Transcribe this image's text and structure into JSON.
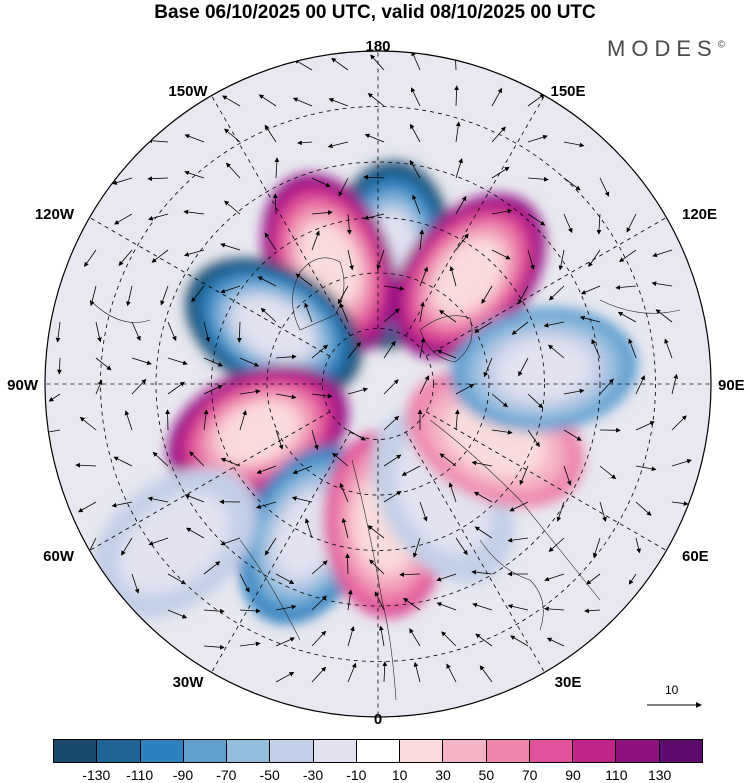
{
  "title": "Base 06/10/2025 00 UTC, valid 08/10/2025 00 UTC",
  "brand": {
    "name": "MODES",
    "mark": "©"
  },
  "longitude_labels": [
    "180",
    "150E",
    "120E",
    "90E",
    "60E",
    "30E",
    "0",
    "30W",
    "60W",
    "90W",
    "120W",
    "150W"
  ],
  "vector_reference": {
    "value": "10"
  },
  "colorbar": {
    "tick_labels": [
      "-130",
      "-110",
      "-90",
      "-70",
      "-50",
      "-30",
      "-10",
      "10",
      "30",
      "50",
      "70",
      "90",
      "110",
      "130"
    ],
    "colors": [
      "#1a4a6b",
      "#1f6496",
      "#2e80bf",
      "#5e9fcf",
      "#93bbdc",
      "#c2cfe6",
      "#e2e2f0",
      "#ffffff",
      "#fadcdc",
      "#f5b4c6",
      "#ee86ae",
      "#e0539a",
      "#c02489",
      "#8e1182",
      "#5c0a6e"
    ]
  },
  "anomaly_centers": [
    {
      "name": "anomaly-low-central-north",
      "lon": -175,
      "lat": 55,
      "value": -140
    },
    {
      "name": "anomaly-high-north-west",
      "lon": 158,
      "lat": 55,
      "value": 120
    },
    {
      "name": "anomaly-high-north-east",
      "lon": -140,
      "lat": 52,
      "value": 110
    },
    {
      "name": "anomaly-low-west",
      "lon": 118,
      "lat": 58,
      "value": -130
    },
    {
      "name": "anomaly-high-west",
      "lon": 68,
      "lat": 55,
      "value": 120
    },
    {
      "name": "anomaly-low-southwest",
      "lon": 25,
      "lat": 45,
      "value": -90
    },
    {
      "name": "anomaly-high-south",
      "lon": -3,
      "lat": 52,
      "value": 70
    },
    {
      "name": "anomaly-low-southeast",
      "lon": -30,
      "lat": 55,
      "value": -40
    },
    {
      "name": "anomaly-high-east-south",
      "lon": -65,
      "lat": 55,
      "value": 60
    },
    {
      "name": "anomaly-low-east",
      "lon": -95,
      "lat": 45,
      "value": -70
    },
    {
      "name": "anomaly-low-far-west",
      "lon": 52,
      "lat": 20,
      "value": -30
    }
  ]
}
